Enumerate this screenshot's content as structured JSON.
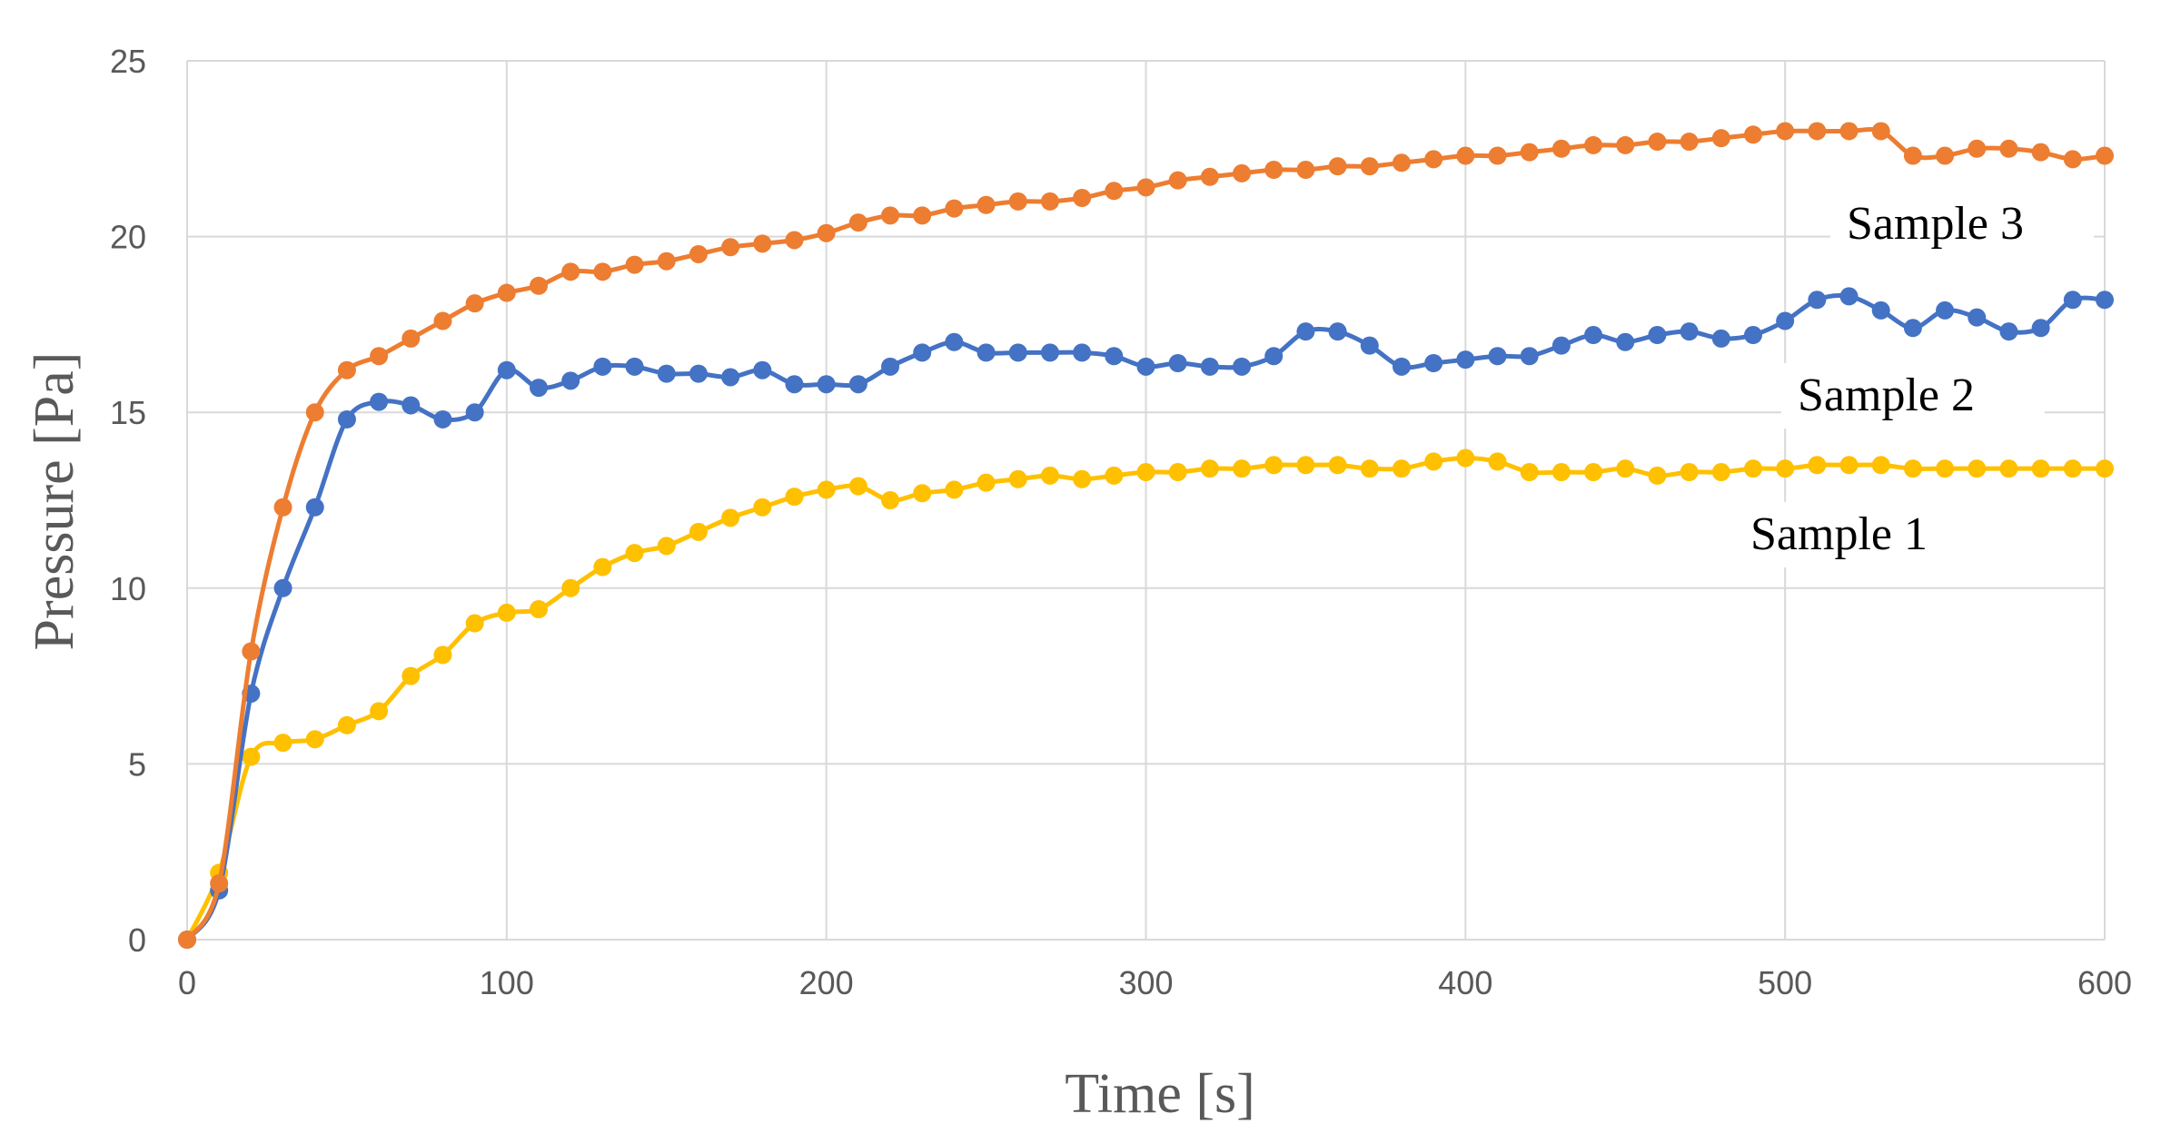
{
  "chart_data": {
    "type": "line",
    "title": "",
    "xlabel": "Time [s]",
    "ylabel": "Pressure  [Pa]",
    "xlim": [
      0,
      600
    ],
    "ylim": [
      0,
      25
    ],
    "x_ticks": [
      0,
      100,
      200,
      300,
      400,
      500,
      600
    ],
    "y_ticks": [
      0,
      5,
      10,
      15,
      20,
      25
    ],
    "grid": true,
    "legend": "inline labels at right",
    "x": [
      0,
      10,
      20,
      30,
      40,
      50,
      60,
      70,
      80,
      90,
      100,
      110,
      120,
      130,
      140,
      150,
      160,
      170,
      180,
      190,
      200,
      210,
      220,
      230,
      240,
      250,
      260,
      270,
      280,
      290,
      300,
      310,
      320,
      330,
      340,
      350,
      360,
      370,
      380,
      390,
      400,
      410,
      420,
      430,
      440,
      450,
      460,
      470,
      480,
      490,
      500,
      510,
      520,
      530,
      540,
      550,
      560,
      570,
      580,
      590,
      600
    ],
    "series": [
      {
        "name": "Sample 1",
        "label": "Sample 1",
        "color": "#FFC000",
        "values": [
          0,
          1.9,
          5.2,
          5.6,
          5.7,
          6.1,
          6.5,
          7.5,
          8.1,
          9.0,
          9.3,
          9.4,
          10.0,
          10.6,
          11.0,
          11.2,
          11.6,
          12.0,
          12.3,
          12.6,
          12.8,
          12.9,
          12.5,
          12.7,
          12.8,
          13.0,
          13.1,
          13.2,
          13.1,
          13.2,
          13.3,
          13.3,
          13.4,
          13.4,
          13.5,
          13.5,
          13.5,
          13.4,
          13.4,
          13.6,
          13.7,
          13.6,
          13.3,
          13.3,
          13.3,
          13.4,
          13.2,
          13.3,
          13.3,
          13.4,
          13.4,
          13.5,
          13.5,
          13.5,
          13.4,
          13.4,
          13.4,
          13.4,
          13.4,
          13.4,
          13.4
        ]
      },
      {
        "name": "Sample 2",
        "label": "Sample 2",
        "color": "#4472C4",
        "values": [
          0,
          1.4,
          7.0,
          10.0,
          12.3,
          14.8,
          15.3,
          15.2,
          14.8,
          15.0,
          16.2,
          15.7,
          15.9,
          16.3,
          16.3,
          16.1,
          16.1,
          16.0,
          16.2,
          15.8,
          15.8,
          15.8,
          16.3,
          16.7,
          17.0,
          16.7,
          16.7,
          16.7,
          16.7,
          16.6,
          16.3,
          16.4,
          16.3,
          16.3,
          16.6,
          17.3,
          17.3,
          16.9,
          16.3,
          16.4,
          16.5,
          16.6,
          16.6,
          16.9,
          17.2,
          17.0,
          17.2,
          17.3,
          17.1,
          17.2,
          17.6,
          18.2,
          18.3,
          17.9,
          17.4,
          17.9,
          17.7,
          17.3,
          17.4,
          18.2,
          18.2
        ]
      },
      {
        "name": "Sample 3",
        "label": "Sample 3",
        "color": "#ED7D31",
        "values": [
          0,
          1.6,
          8.2,
          12.3,
          15.0,
          16.2,
          16.6,
          17.1,
          17.6,
          18.1,
          18.4,
          18.6,
          19.0,
          19.0,
          19.2,
          19.3,
          19.5,
          19.7,
          19.8,
          19.9,
          20.1,
          20.4,
          20.6,
          20.6,
          20.8,
          20.9,
          21.0,
          21.0,
          21.1,
          21.3,
          21.4,
          21.6,
          21.7,
          21.8,
          21.9,
          21.9,
          22.0,
          22.0,
          22.1,
          22.2,
          22.3,
          22.3,
          22.4,
          22.5,
          22.6,
          22.6,
          22.7,
          22.7,
          22.8,
          22.9,
          23.0,
          23.0,
          23.0,
          23.0,
          22.3,
          22.3,
          22.5,
          22.5,
          22.4,
          22.2,
          22.3
        ]
      }
    ]
  }
}
